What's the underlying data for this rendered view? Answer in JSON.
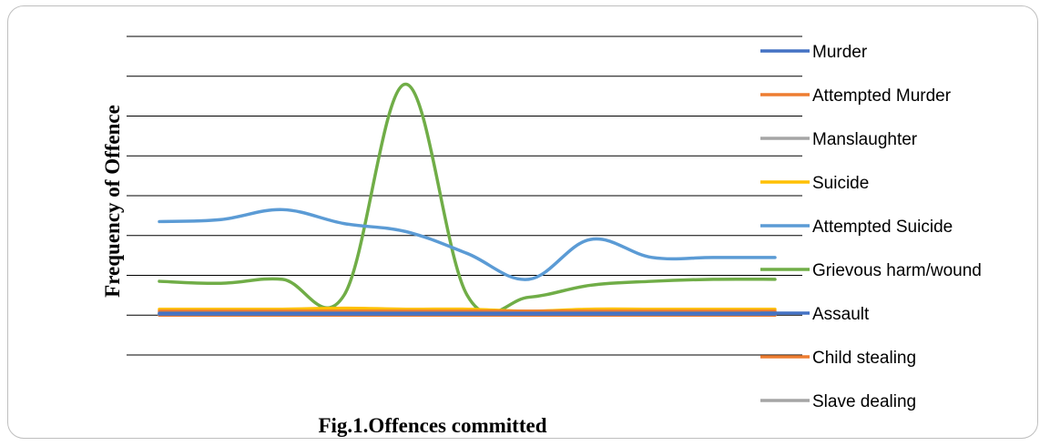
{
  "chart_data": {
    "type": "line",
    "title": "",
    "caption": "Fig.1.Offences committed",
    "xlabel": "",
    "ylabel": "Frequency of Offence",
    "ylim": [
      -2,
      14
    ],
    "grid": true,
    "legend_position": "right",
    "x": [
      1,
      2,
      3,
      4,
      5,
      6,
      7,
      8,
      9,
      10,
      11
    ],
    "series": [
      {
        "name": "Murder",
        "color": "#4472c4",
        "values": [
          0.1,
          0.1,
          0.1,
          0.1,
          0.1,
          0.1,
          0.1,
          0.1,
          0.1,
          0.1,
          0.1
        ]
      },
      {
        "name": "Attempted Murder",
        "color": "#ed7d31",
        "values": [
          0.2,
          0.2,
          0.2,
          0.2,
          0.2,
          0.2,
          0.2,
          0.2,
          0.2,
          0.2,
          0.2
        ]
      },
      {
        "name": "Manslaughter",
        "color": "#a5a5a5",
        "values": [
          0.1,
          0.1,
          0.1,
          0.1,
          0.1,
          0.1,
          0.1,
          0.1,
          0.1,
          0.1,
          0.1
        ]
      },
      {
        "name": "Suicide",
        "color": "#ffc000",
        "values": [
          0.3,
          0.3,
          0.3,
          0.35,
          0.3,
          0.3,
          0.2,
          0.3,
          0.3,
          0.3,
          0.3
        ]
      },
      {
        "name": "Attempted Suicide",
        "color": "#5b9bd5",
        "values": [
          4.7,
          4.8,
          5.3,
          4.6,
          4.2,
          3.1,
          1.8,
          3.8,
          2.9,
          2.9,
          2.9
        ]
      },
      {
        "name": "Grievous harm/wound",
        "color": "#70ad47",
        "values": [
          1.7,
          1.6,
          1.8,
          1.0,
          11.6,
          1.0,
          0.9,
          1.5,
          1.7,
          1.8,
          1.8
        ]
      },
      {
        "name": "Assault",
        "color": "#4472c4",
        "values": [
          0.05,
          0.05,
          0.05,
          0.05,
          0.05,
          0.05,
          0.05,
          0.05,
          0.05,
          0.05,
          0.05
        ]
      },
      {
        "name": "Child stealing",
        "color": "#ed7d31",
        "values": [
          0,
          0,
          0,
          0,
          0,
          0,
          0,
          0,
          0,
          0,
          0
        ]
      },
      {
        "name": "Slave dealing",
        "color": "#a5a5a5",
        "values": [
          0,
          0,
          0,
          0,
          0,
          0,
          0,
          0,
          0,
          0,
          0
        ]
      }
    ]
  }
}
